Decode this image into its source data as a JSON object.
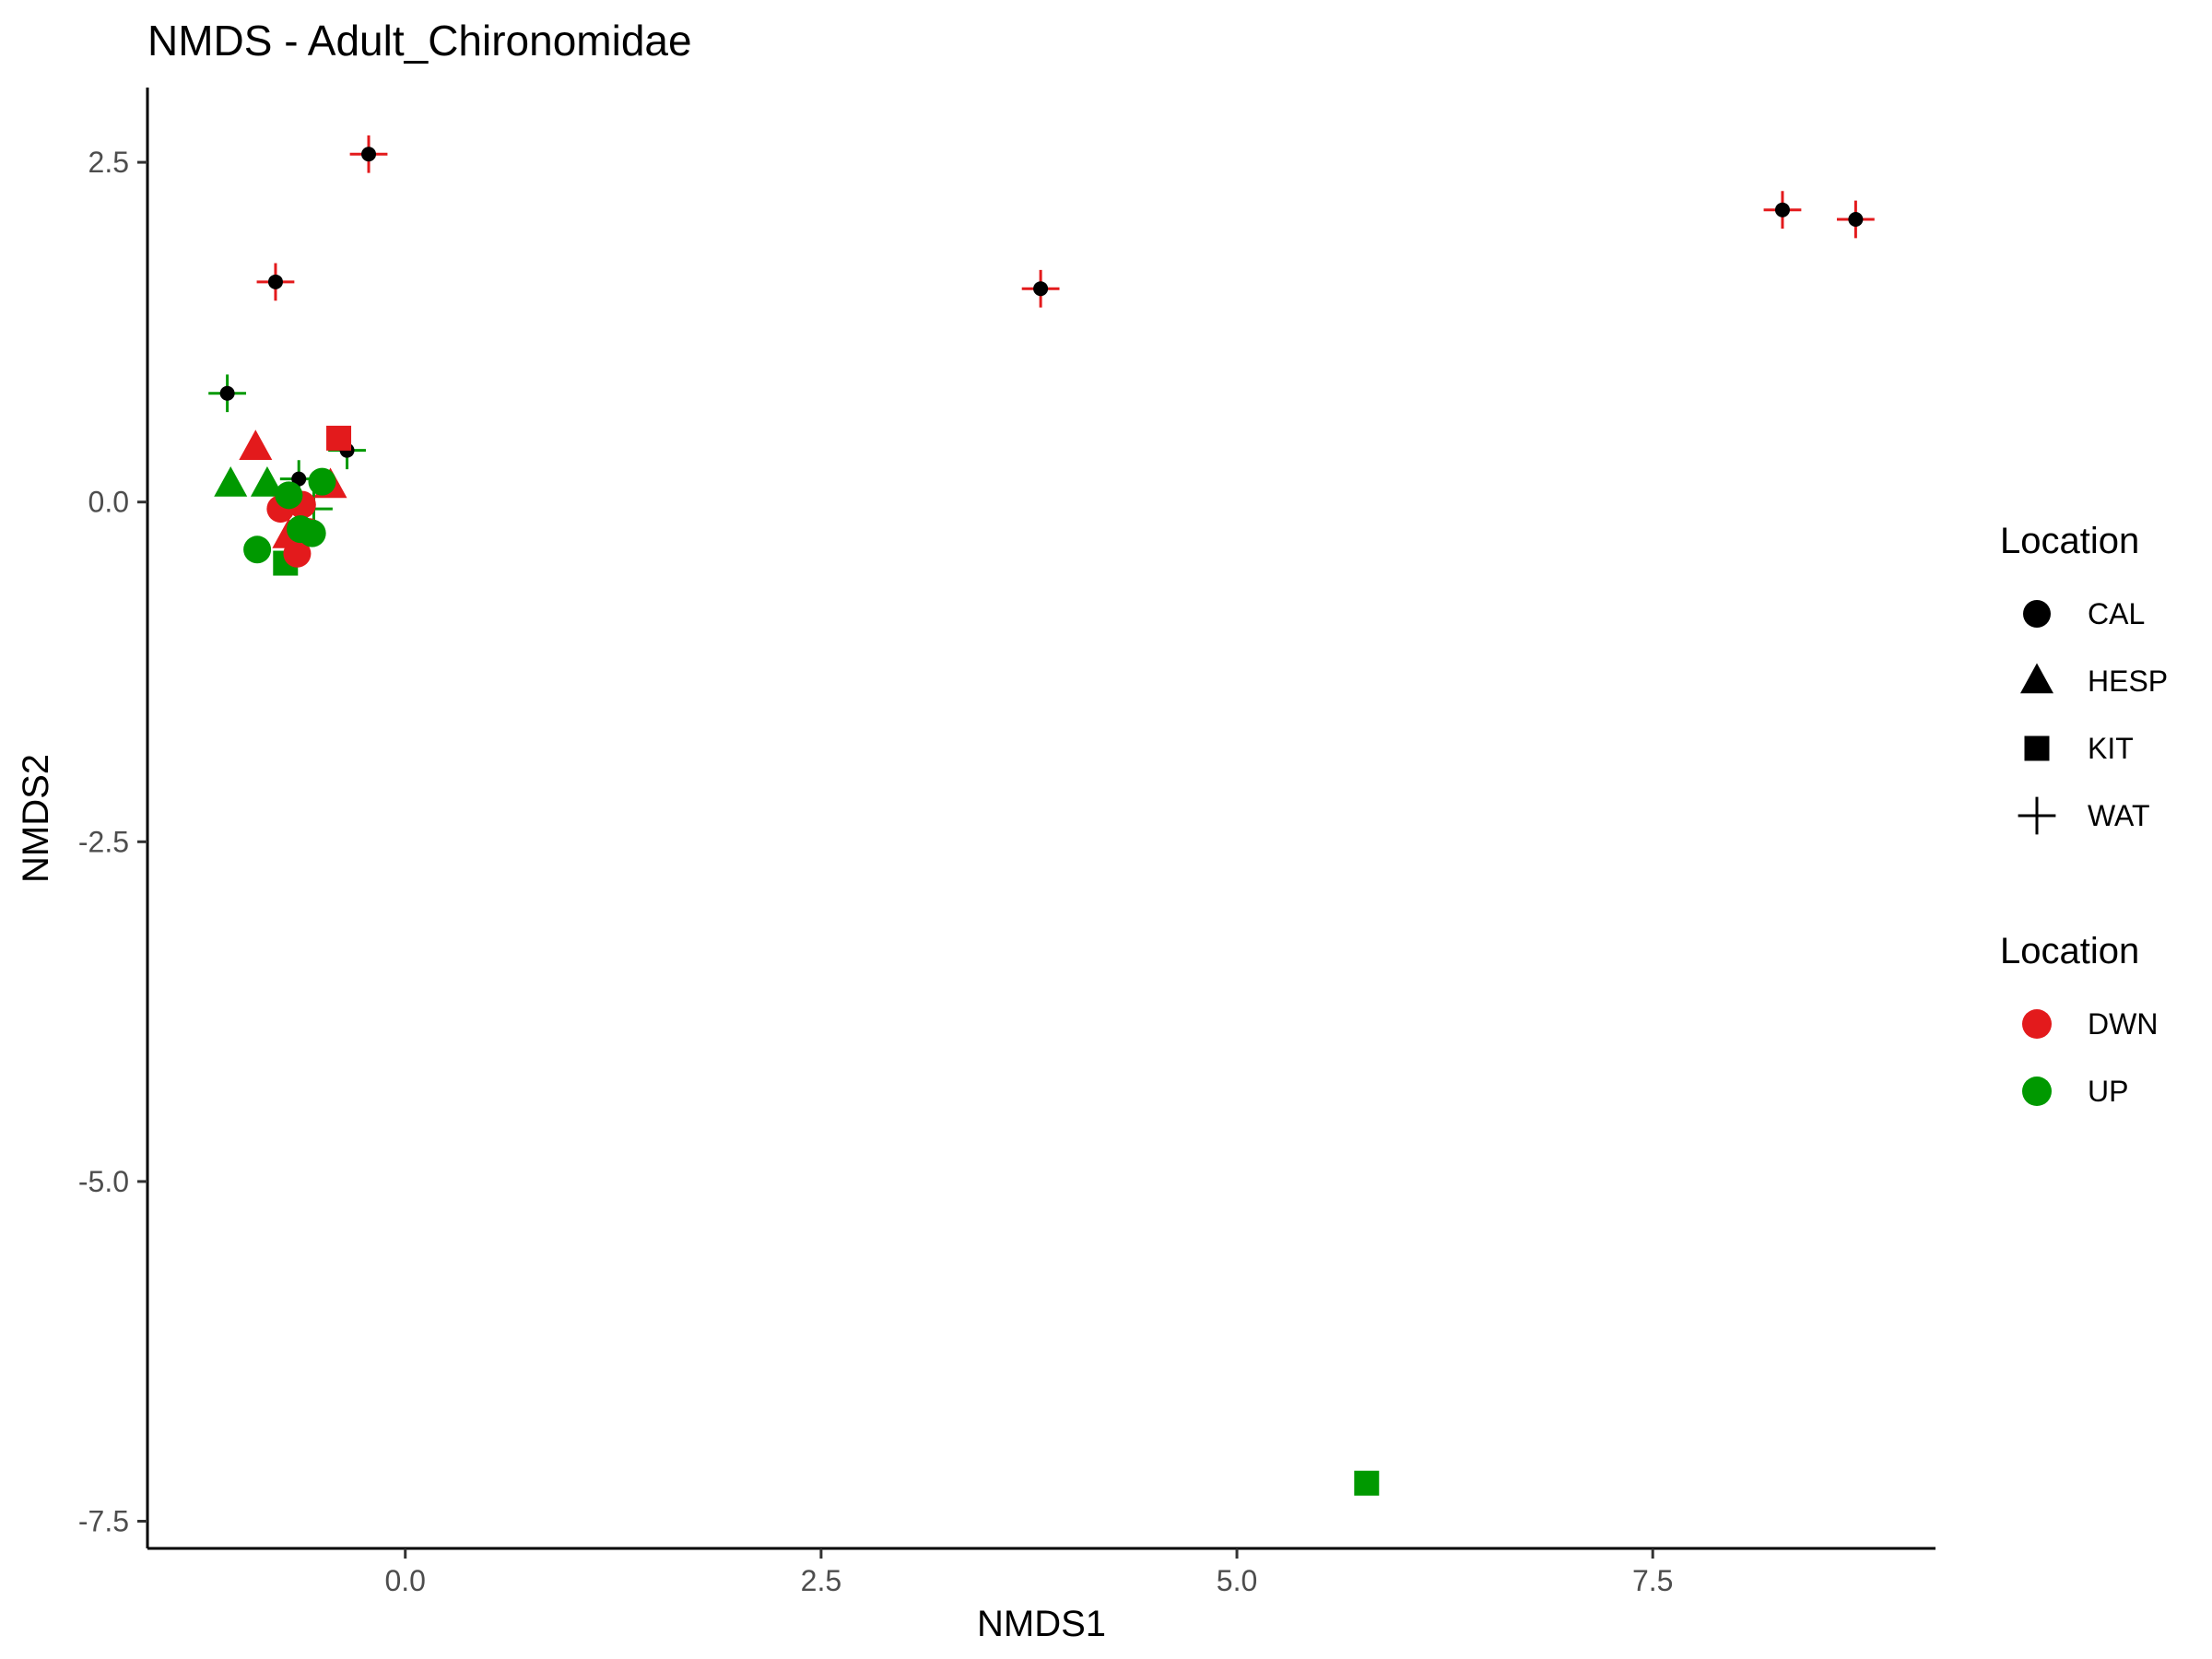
{
  "chart_data": {
    "type": "scatter",
    "title": "NMDS - Adult_Chironomidae",
    "xlabel": "NMDS1",
    "ylabel": "NMDS2",
    "xlim": [
      -1.55,
      9.2
    ],
    "ylim": [
      -7.7,
      3.05
    ],
    "x_ticks": [
      0.0,
      2.5,
      5.0,
      7.5
    ],
    "x_tick_labels": [
      "0.0",
      "2.5",
      "5.0",
      "7.5"
    ],
    "y_ticks": [
      2.5,
      0.0,
      -2.5,
      -5.0,
      -7.5
    ],
    "y_tick_labels": [
      "2.5",
      "0.0",
      "-2.5",
      "-5.0",
      "-7.5"
    ],
    "grid": false,
    "legend_position": "right",
    "colors": {
      "DWN": "#e31a1c",
      "UP": "#009900",
      "overlay": "#000000"
    },
    "legend": [
      {
        "title": "Location",
        "kind": "shape",
        "entries": [
          {
            "label": "CAL",
            "shape": "circle"
          },
          {
            "label": "HESP",
            "shape": "triangle"
          },
          {
            "label": "KIT",
            "shape": "square"
          },
          {
            "label": "WAT",
            "shape": "plus"
          }
        ]
      },
      {
        "title": "Location",
        "kind": "color",
        "entries": [
          {
            "label": "DWN",
            "color": "#e31a1c"
          },
          {
            "label": "UP",
            "color": "#009900"
          }
        ]
      }
    ],
    "points": [
      {
        "x": -0.22,
        "y": 2.56,
        "shape": "WAT",
        "group": "DWN",
        "overlay": true
      },
      {
        "x": -0.78,
        "y": 1.62,
        "shape": "WAT",
        "group": "DWN",
        "overlay": true
      },
      {
        "x": 3.82,
        "y": 1.57,
        "shape": "WAT",
        "group": "DWN",
        "overlay": true
      },
      {
        "x": 8.28,
        "y": 2.15,
        "shape": "WAT",
        "group": "DWN",
        "overlay": true
      },
      {
        "x": 8.72,
        "y": 2.08,
        "shape": "WAT",
        "group": "DWN",
        "overlay": true
      },
      {
        "x": -1.07,
        "y": 0.8,
        "shape": "WAT",
        "group": "UP",
        "overlay": true
      },
      {
        "x": -0.35,
        "y": 0.38,
        "shape": "WAT",
        "group": "UP",
        "overlay": true
      },
      {
        "x": -0.64,
        "y": 0.17,
        "shape": "WAT",
        "group": "UP",
        "overlay": true
      },
      {
        "x": -0.55,
        "y": -0.05,
        "shape": "WAT",
        "group": "UP",
        "overlay": false
      },
      {
        "x": -0.9,
        "y": 0.4,
        "shape": "HESP",
        "group": "DWN",
        "overlay": false
      },
      {
        "x": -0.45,
        "y": 0.12,
        "shape": "HESP",
        "group": "DWN",
        "overlay": false
      },
      {
        "x": -0.7,
        "y": -0.25,
        "shape": "HESP",
        "group": "DWN",
        "overlay": false
      },
      {
        "x": -1.05,
        "y": 0.13,
        "shape": "HESP",
        "group": "UP",
        "overlay": false
      },
      {
        "x": -0.83,
        "y": 0.13,
        "shape": "HESP",
        "group": "UP",
        "overlay": false
      },
      {
        "x": -0.4,
        "y": 0.47,
        "shape": "KIT",
        "group": "DWN",
        "overlay": false
      },
      {
        "x": -0.72,
        "y": -0.45,
        "shape": "KIT",
        "group": "UP",
        "overlay": false
      },
      {
        "x": 5.78,
        "y": -7.22,
        "shape": "KIT",
        "group": "UP",
        "overlay": false
      },
      {
        "x": -0.75,
        "y": -0.05,
        "shape": "CAL",
        "group": "DWN",
        "overlay": false
      },
      {
        "x": -0.62,
        "y": -0.02,
        "shape": "CAL",
        "group": "DWN",
        "overlay": false
      },
      {
        "x": -0.65,
        "y": -0.38,
        "shape": "CAL",
        "group": "DWN",
        "overlay": false
      },
      {
        "x": -0.58,
        "y": -0.22,
        "shape": "CAL",
        "group": "DWN",
        "overlay": false
      },
      {
        "x": -0.89,
        "y": -0.35,
        "shape": "CAL",
        "group": "UP",
        "overlay": false
      },
      {
        "x": -0.7,
        "y": 0.05,
        "shape": "CAL",
        "group": "UP",
        "overlay": false
      },
      {
        "x": -0.5,
        "y": 0.15,
        "shape": "CAL",
        "group": "UP",
        "overlay": false
      },
      {
        "x": -0.63,
        "y": -0.2,
        "shape": "CAL",
        "group": "UP",
        "overlay": false
      },
      {
        "x": -0.56,
        "y": -0.23,
        "shape": "CAL",
        "group": "UP",
        "overlay": false
      }
    ]
  }
}
